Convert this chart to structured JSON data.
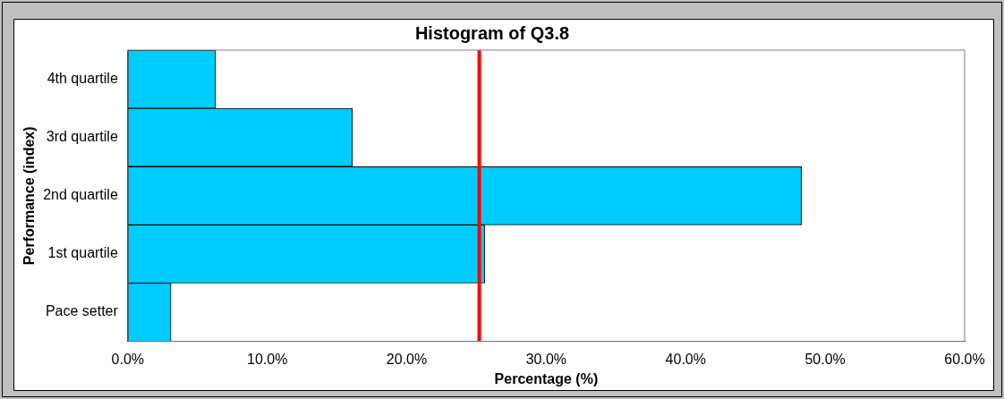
{
  "chart_data": {
    "type": "bar",
    "orientation": "horizontal",
    "title": "Histogram of Q3.8",
    "xlabel": "Percentage (%)",
    "ylabel": "Performance (index)",
    "categories": [
      "4th quartile",
      "3rd quartile",
      "2nd quartile",
      "1st quartile",
      "Pace setter"
    ],
    "values": [
      6.3,
      16.1,
      48.3,
      25.6,
      3.1
    ],
    "color": "#00ccff",
    "xlim": [
      0,
      60
    ],
    "xticks": [
      {
        "value": 0,
        "label": "0.0%"
      },
      {
        "value": 10,
        "label": "10.0%"
      },
      {
        "value": 20,
        "label": "20.0%"
      },
      {
        "value": 30,
        "label": "30.0%"
      },
      {
        "value": 40,
        "label": "40.0%"
      },
      {
        "value": 50,
        "label": "50.0%"
      },
      {
        "value": 60,
        "label": "60.0%"
      }
    ],
    "ref_lines": [
      {
        "axis": "x",
        "value": 25.2,
        "color": "#ff0000"
      }
    ],
    "grid": false,
    "legend": false
  }
}
